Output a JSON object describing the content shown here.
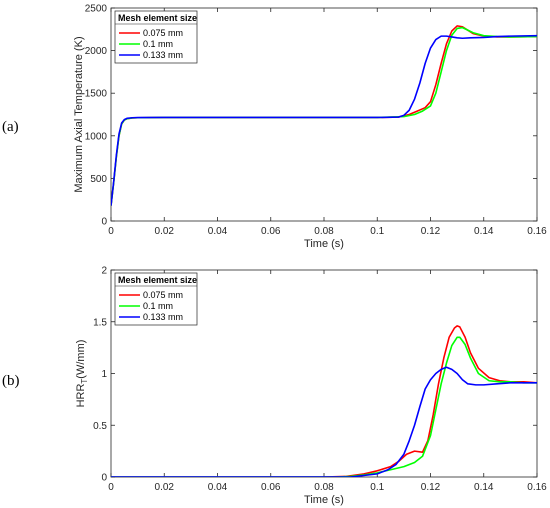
{
  "chart_data": [
    {
      "type": "line",
      "panel_label": "(a)",
      "xlabel": "Time (s)",
      "ylabel": "Maximum Axial Temperature (K)",
      "xlim": [
        0,
        0.16
      ],
      "ylim": [
        0,
        2500
      ],
      "xticks": [
        0,
        0.02,
        0.04,
        0.06,
        0.08,
        0.1,
        0.12,
        0.14,
        0.16
      ],
      "xticklabels": [
        "0",
        "0.02",
        "0.04",
        "0.06",
        "0.08",
        "0.1",
        "0.12",
        "0.14",
        "0.16"
      ],
      "yticks": [
        0,
        500,
        1000,
        1500,
        2000,
        2500
      ],
      "yticklabels": [
        "0",
        "500",
        "1000",
        "1500",
        "2000",
        "2500"
      ],
      "legend_title": "Mesh element size",
      "legend_position": "top-left",
      "series": [
        {
          "name": "0.075 mm",
          "color": "#ff0000",
          "x": [
            0,
            0.001,
            0.002,
            0.003,
            0.004,
            0.005,
            0.006,
            0.008,
            0.01,
            0.02,
            0.05,
            0.08,
            0.1,
            0.108,
            0.112,
            0.115,
            0.118,
            0.12,
            0.122,
            0.124,
            0.126,
            0.128,
            0.13,
            0.132,
            0.134,
            0.136,
            0.14,
            0.145,
            0.15,
            0.16
          ],
          "y": [
            180,
            450,
            750,
            1000,
            1140,
            1185,
            1200,
            1210,
            1212,
            1215,
            1215,
            1215,
            1215,
            1220,
            1250,
            1290,
            1330,
            1400,
            1600,
            1850,
            2080,
            2230,
            2290,
            2280,
            2240,
            2200,
            2170,
            2160,
            2160,
            2165
          ]
        },
        {
          "name": "0.1 mm",
          "color": "#00ff00",
          "x": [
            0,
            0.001,
            0.002,
            0.003,
            0.004,
            0.005,
            0.006,
            0.008,
            0.01,
            0.02,
            0.05,
            0.08,
            0.1,
            0.11,
            0.114,
            0.117,
            0.12,
            0.122,
            0.124,
            0.126,
            0.128,
            0.13,
            0.132,
            0.134,
            0.136,
            0.14,
            0.145,
            0.15,
            0.16
          ],
          "y": [
            180,
            450,
            750,
            1000,
            1140,
            1185,
            1200,
            1210,
            1212,
            1215,
            1215,
            1215,
            1215,
            1225,
            1250,
            1290,
            1350,
            1500,
            1750,
            2000,
            2180,
            2260,
            2270,
            2240,
            2210,
            2175,
            2165,
            2160,
            2165
          ]
        },
        {
          "name": "0.133 mm",
          "color": "#0000ff",
          "x": [
            0,
            0.001,
            0.002,
            0.003,
            0.004,
            0.005,
            0.006,
            0.008,
            0.01,
            0.02,
            0.05,
            0.08,
            0.1,
            0.108,
            0.11,
            0.112,
            0.114,
            0.116,
            0.118,
            0.12,
            0.122,
            0.124,
            0.126,
            0.128,
            0.13,
            0.132,
            0.135,
            0.14,
            0.145,
            0.15,
            0.16
          ],
          "y": [
            180,
            460,
            770,
            1020,
            1150,
            1190,
            1205,
            1212,
            1214,
            1215,
            1215,
            1215,
            1215,
            1220,
            1240,
            1300,
            1430,
            1620,
            1850,
            2030,
            2130,
            2170,
            2170,
            2160,
            2150,
            2145,
            2150,
            2155,
            2165,
            2170,
            2175
          ]
        }
      ]
    },
    {
      "type": "line",
      "panel_label": "(b)",
      "xlabel": "Time (s)",
      "ylabel_main": "HRR",
      "ylabel_sub": "T",
      "ylabel_rest": "(W/mm)",
      "xlim": [
        0,
        0.16
      ],
      "ylim": [
        0,
        2
      ],
      "xticks": [
        0,
        0.02,
        0.04,
        0.06,
        0.08,
        0.1,
        0.12,
        0.14,
        0.16
      ],
      "xticklabels": [
        "0",
        "0.02",
        "0.04",
        "0.06",
        "0.08",
        "0.1",
        "0.12",
        "0.14",
        "0.16"
      ],
      "yticks": [
        0,
        0.5,
        1,
        1.5,
        2
      ],
      "yticklabels": [
        "0",
        "0.5",
        "1",
        "1.5",
        "2"
      ],
      "legend_title": "Mesh element size",
      "legend_position": "top-left",
      "series": [
        {
          "name": "0.075 mm",
          "color": "#ff0000",
          "x": [
            0,
            0.08,
            0.088,
            0.095,
            0.1,
            0.105,
            0.108,
            0.111,
            0.114,
            0.117,
            0.119,
            0.121,
            0.123,
            0.125,
            0.127,
            0.129,
            0.13,
            0.131,
            0.133,
            0.135,
            0.138,
            0.142,
            0.146,
            0.15,
            0.155,
            0.16
          ],
          "y": [
            0,
            0,
            0.005,
            0.03,
            0.06,
            0.1,
            0.15,
            0.22,
            0.25,
            0.24,
            0.35,
            0.6,
            0.9,
            1.15,
            1.35,
            1.44,
            1.46,
            1.45,
            1.35,
            1.2,
            1.05,
            0.96,
            0.93,
            0.92,
            0.92,
            0.91
          ]
        },
        {
          "name": "0.1 mm",
          "color": "#00ff00",
          "x": [
            0,
            0.085,
            0.09,
            0.095,
            0.1,
            0.105,
            0.11,
            0.114,
            0.117,
            0.12,
            0.122,
            0.124,
            0.126,
            0.128,
            0.13,
            0.131,
            0.133,
            0.135,
            0.138,
            0.142,
            0.146,
            0.15,
            0.155,
            0.16
          ],
          "y": [
            0,
            0,
            0.005,
            0.02,
            0.04,
            0.07,
            0.1,
            0.14,
            0.2,
            0.4,
            0.65,
            0.9,
            1.1,
            1.27,
            1.35,
            1.35,
            1.28,
            1.15,
            1.0,
            0.93,
            0.92,
            0.92,
            0.91,
            0.91
          ]
        },
        {
          "name": "0.133 mm",
          "color": "#0000ff",
          "x": [
            0,
            0.09,
            0.1,
            0.104,
            0.107,
            0.11,
            0.112,
            0.114,
            0.116,
            0.118,
            0.12,
            0.122,
            0.124,
            0.126,
            0.128,
            0.13,
            0.132,
            0.134,
            0.137,
            0.14,
            0.145,
            0.15,
            0.155,
            0.16
          ],
          "y": [
            0,
            0,
            0.03,
            0.07,
            0.12,
            0.22,
            0.35,
            0.5,
            0.68,
            0.85,
            0.94,
            1.0,
            1.04,
            1.06,
            1.04,
            1.0,
            0.94,
            0.9,
            0.89,
            0.89,
            0.9,
            0.91,
            0.91,
            0.91
          ]
        }
      ]
    }
  ]
}
